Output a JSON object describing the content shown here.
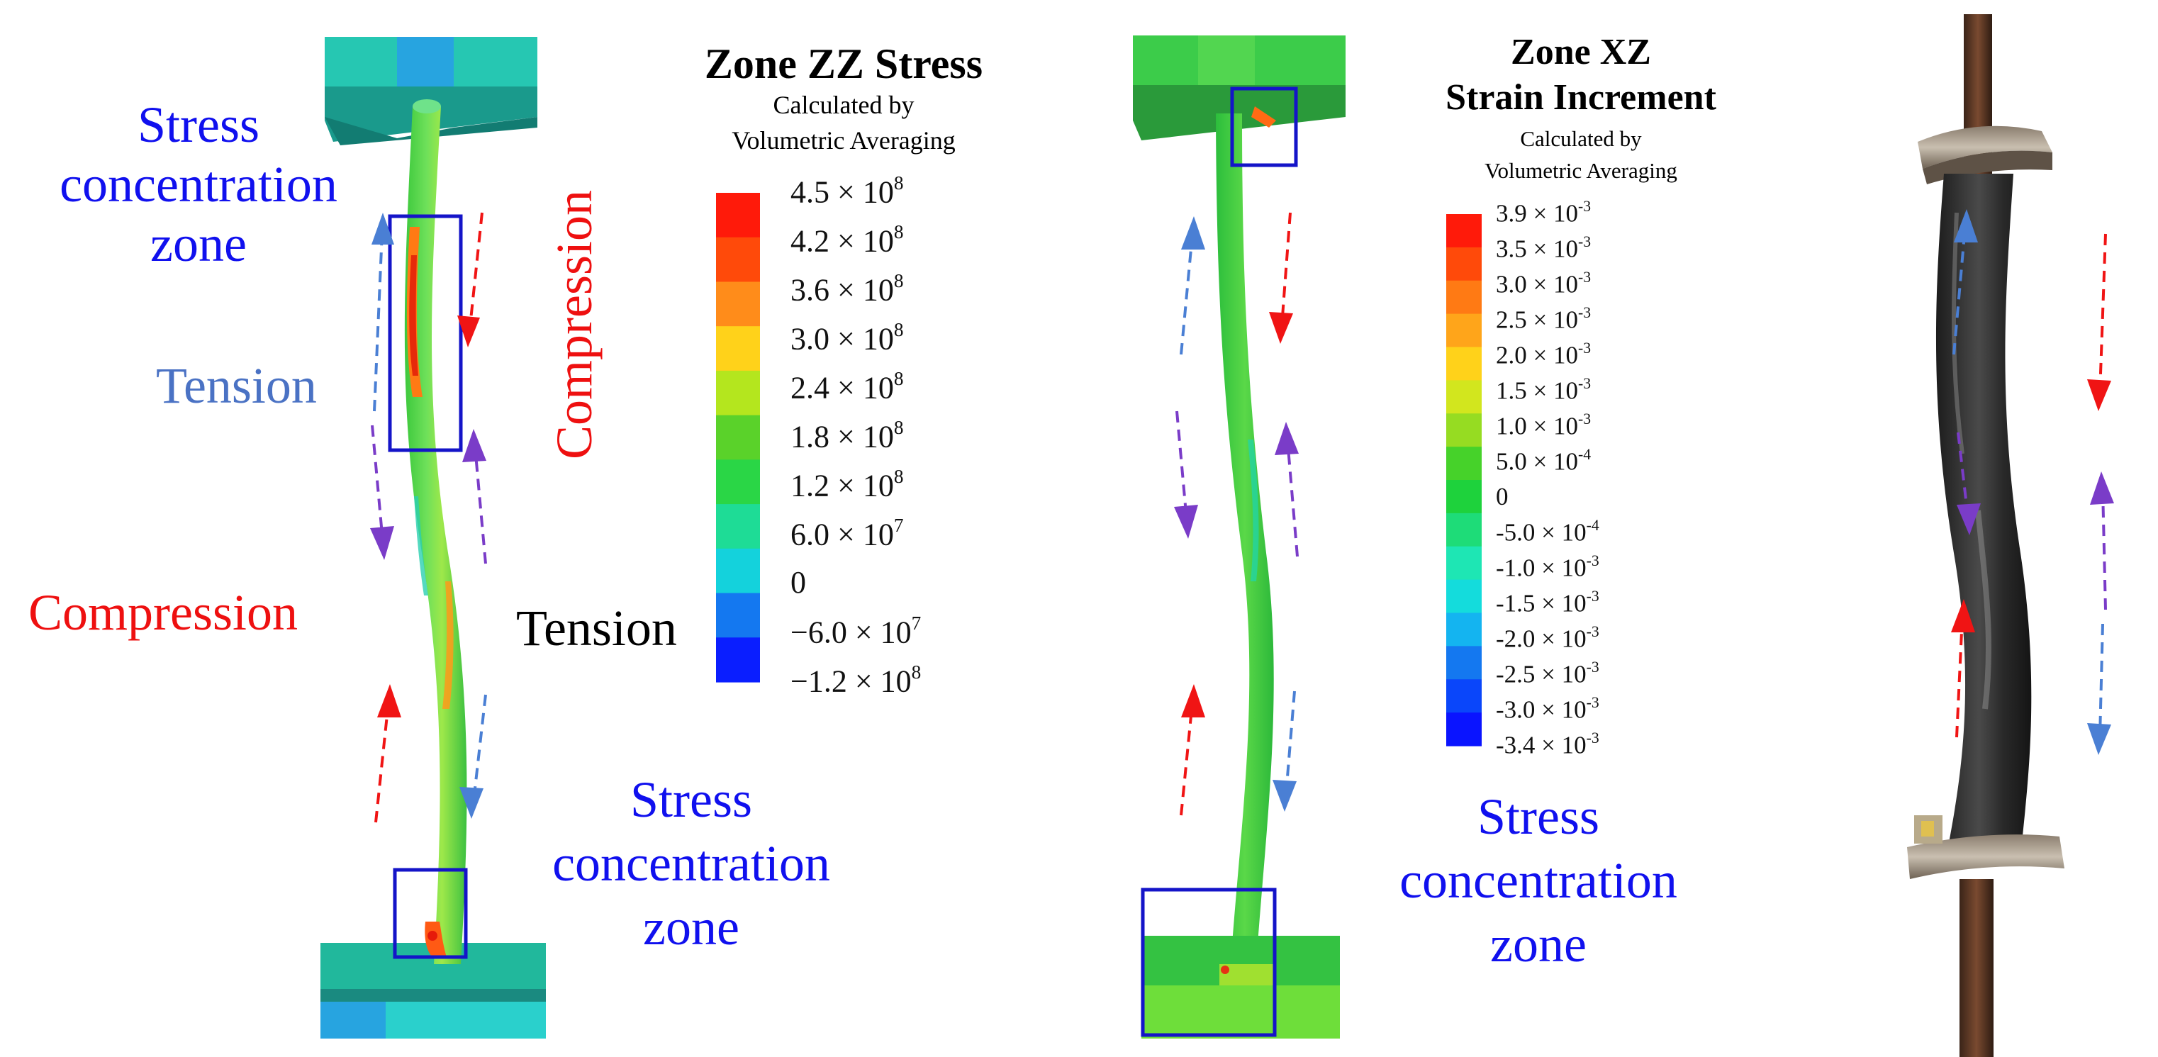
{
  "panel_a": {
    "title": "Zone ZZ Stress",
    "subtitle_line1": "Calculated by",
    "subtitle_line2": "Volumetric Averaging",
    "legend_ticks": [
      {
        "mantissa": "4.5 × 10",
        "exp": "8"
      },
      {
        "mantissa": "4.2 × 10",
        "exp": "8"
      },
      {
        "mantissa": "3.6 × 10",
        "exp": "8"
      },
      {
        "mantissa": "3.0 × 10",
        "exp": "8"
      },
      {
        "mantissa": "2.4 × 10",
        "exp": "8"
      },
      {
        "mantissa": "1.8 × 10",
        "exp": "8"
      },
      {
        "mantissa": "1.2 × 10",
        "exp": "8"
      },
      {
        "mantissa": "6.0 × 10",
        "exp": "7"
      },
      {
        "mantissa": "0",
        "exp": ""
      },
      {
        "mantissa": "−6.0 × 10",
        "exp": "7"
      },
      {
        "mantissa": "−1.2 × 10",
        "exp": "8"
      }
    ],
    "legend_colors": [
      "#ff1a0a",
      "#ff4a0a",
      "#ff8c1a",
      "#ffd21a",
      "#b4e61e",
      "#5ad22a",
      "#2ad646",
      "#1edc96",
      "#14d2dc",
      "#1478f0",
      "#0a1eff"
    ],
    "labels": {
      "stress_zone_top": [
        "Stress",
        "concentration",
        "zone"
      ],
      "tension_left": "Tension",
      "compression_vertical": "Compression",
      "compression_left": "Compression",
      "tension_black": "Tension",
      "stress_zone_bottom": [
        "Stress",
        "concentration",
        "zone"
      ]
    }
  },
  "panel_b": {
    "title_line1": "Zone XZ",
    "title_line2": "Strain Increment",
    "subtitle_line1": "Calculated by",
    "subtitle_line2": "Volumetric Averaging",
    "legend_ticks": [
      {
        "mantissa": "3.9 × 10",
        "exp": "-3"
      },
      {
        "mantissa": "3.5 × 10",
        "exp": "-3"
      },
      {
        "mantissa": "3.0 × 10",
        "exp": "-3"
      },
      {
        "mantissa": "2.5 × 10",
        "exp": "-3"
      },
      {
        "mantissa": "2.0 × 10",
        "exp": "-3"
      },
      {
        "mantissa": "1.5 × 10",
        "exp": "-3"
      },
      {
        "mantissa": "1.0 × 10",
        "exp": "-3"
      },
      {
        "mantissa": "5.0 × 10",
        "exp": "-4"
      },
      {
        "mantissa": "0",
        "exp": ""
      },
      {
        "mantissa": "-5.0 × 10",
        "exp": "-4"
      },
      {
        "mantissa": "-1.0 × 10",
        "exp": "-3"
      },
      {
        "mantissa": "-1.5 × 10",
        "exp": "-3"
      },
      {
        "mantissa": "-2.0 × 10",
        "exp": "-3"
      },
      {
        "mantissa": "-2.5 × 10",
        "exp": "-3"
      },
      {
        "mantissa": "-3.0 × 10",
        "exp": "-3"
      },
      {
        "mantissa": "-3.4 × 10",
        "exp": "-3"
      }
    ],
    "legend_colors": [
      "#ff1a0a",
      "#ff4a0a",
      "#ff7a14",
      "#ffa51a",
      "#ffd21a",
      "#d2e61e",
      "#96dc22",
      "#46d22a",
      "#1ed23c",
      "#1edc78",
      "#1ee6b4",
      "#14dcdc",
      "#14b4f0",
      "#1478f0",
      "#0a46fa",
      "#0a14ff"
    ],
    "labels": {
      "stress_zone": [
        "Stress",
        "concentration",
        "zone"
      ]
    }
  },
  "colors": {
    "label_blue": "#1010ee",
    "label_light_blue": "#4a72c4",
    "label_red": "#ee1010",
    "arrow_blue": "#4a7fd4",
    "arrow_red": "#f01414",
    "arrow_purple": "#7a3cc8",
    "box_blue": "#1414c8"
  }
}
